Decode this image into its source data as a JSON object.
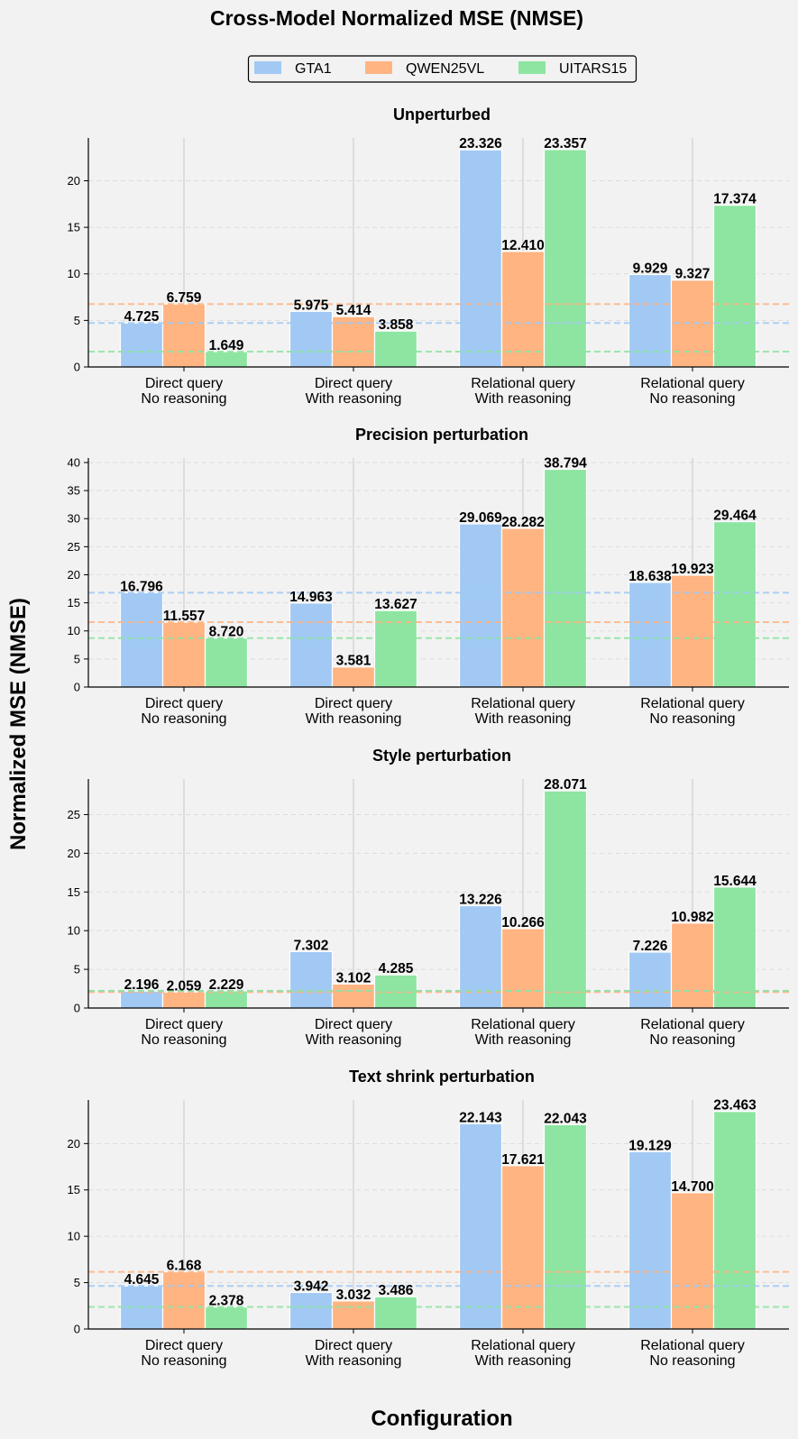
{
  "chart_data": {
    "type": "bar",
    "title": "Cross-Model Normalized MSE (NMSE)",
    "ylabel": "Normalized MSE (NMSE)",
    "xlabel": "Configuration",
    "legend": {
      "placement": "top-center",
      "entries": [
        "GTA1",
        "QWEN25VL",
        "UITARS15"
      ]
    },
    "colors": {
      "GTA1": "#a1c9f4",
      "QWEN25VL": "#ffb482",
      "UITARS15": "#8de5a1",
      "background": "#f2f2f2"
    },
    "categories": [
      [
        "Direct query",
        "No reasoning"
      ],
      [
        "Direct query",
        "With reasoning"
      ],
      [
        "Relational query",
        "With reasoning"
      ],
      [
        "Relational query",
        "No reasoning"
      ]
    ],
    "grid": "horizontal-dashed",
    "panels": [
      {
        "title": "Unperturbed",
        "ylim": [
          0,
          24.6
        ],
        "yticks": [
          0,
          5,
          10,
          15,
          20
        ],
        "series": [
          {
            "name": "GTA1",
            "values": [
              4.725,
              5.975,
              23.326,
              9.929
            ],
            "labels": [
              "4.725",
              "5.975",
              "23.326",
              "9.929"
            ]
          },
          {
            "name": "QWEN25VL",
            "values": [
              6.759,
              5.414,
              12.41,
              9.327
            ],
            "labels": [
              "6.759",
              "5.414",
              "12.410",
              "9.327"
            ]
          },
          {
            "name": "UITARS15",
            "values": [
              1.649,
              3.858,
              23.357,
              17.374
            ],
            "labels": [
              "1.649",
              "3.858",
              "23.357",
              "17.374"
            ]
          }
        ],
        "reference_lines": [
          {
            "series": "GTA1",
            "value": 4.725
          },
          {
            "series": "QWEN25VL",
            "value": 6.759
          },
          {
            "series": "UITARS15",
            "value": 1.649
          }
        ]
      },
      {
        "title": "Precision perturbation",
        "ylim": [
          0,
          40.8
        ],
        "yticks": [
          0,
          5,
          10,
          15,
          20,
          25,
          30,
          35,
          40
        ],
        "series": [
          {
            "name": "GTA1",
            "values": [
              16.796,
              14.963,
              29.069,
              18.638
            ],
            "labels": [
              "16.796",
              "14.963",
              "29.069",
              "18.638"
            ]
          },
          {
            "name": "QWEN25VL",
            "values": [
              11.557,
              3.581,
              28.282,
              19.923
            ],
            "labels": [
              "11.557",
              "3.581",
              "28.282",
              "19.923"
            ]
          },
          {
            "name": "UITARS15",
            "values": [
              8.72,
              13.627,
              38.794,
              29.464
            ],
            "labels": [
              "8.720",
              "13.627",
              "38.794",
              "29.464"
            ]
          }
        ],
        "reference_lines": [
          {
            "series": "GTA1",
            "value": 16.796
          },
          {
            "series": "QWEN25VL",
            "value": 11.557
          },
          {
            "series": "UITARS15",
            "value": 8.72
          }
        ]
      },
      {
        "title": "Style perturbation",
        "ylim": [
          0,
          29.6
        ],
        "yticks": [
          0,
          5,
          10,
          15,
          20,
          25
        ],
        "series": [
          {
            "name": "GTA1",
            "values": [
              2.196,
              7.302,
              13.226,
              7.226
            ],
            "labels": [
              "2.196",
              "7.302",
              "13.226",
              "7.226"
            ]
          },
          {
            "name": "QWEN25VL",
            "values": [
              2.059,
              3.102,
              10.266,
              10.982
            ],
            "labels": [
              "2.059",
              "3.102",
              "10.266",
              "10.982"
            ]
          },
          {
            "name": "UITARS15",
            "values": [
              2.229,
              4.285,
              28.071,
              15.644
            ],
            "labels": [
              "2.229",
              "4.285",
              "28.071",
              "15.644"
            ]
          }
        ],
        "reference_lines": [
          {
            "series": "GTA1",
            "value": 2.196
          },
          {
            "series": "QWEN25VL",
            "value": 2.059
          },
          {
            "series": "UITARS15",
            "value": 2.229
          }
        ]
      },
      {
        "title": "Text shrink perturbation",
        "ylim": [
          0,
          24.7
        ],
        "yticks": [
          0,
          5,
          10,
          15,
          20
        ],
        "series": [
          {
            "name": "GTA1",
            "values": [
              4.645,
              3.942,
              22.143,
              19.129
            ],
            "labels": [
              "4.645",
              "3.942",
              "22.143",
              "19.129"
            ]
          },
          {
            "name": "QWEN25VL",
            "values": [
              6.168,
              3.032,
              17.621,
              14.7
            ],
            "labels": [
              "6.168",
              "3.032",
              "17.621",
              "14.700"
            ]
          },
          {
            "name": "UITARS15",
            "values": [
              2.378,
              3.486,
              22.043,
              23.463
            ],
            "labels": [
              "2.378",
              "3.486",
              "22.043",
              "23.463"
            ]
          }
        ],
        "reference_lines": [
          {
            "series": "GTA1",
            "value": 4.645
          },
          {
            "series": "QWEN25VL",
            "value": 6.168
          },
          {
            "series": "UITARS15",
            "value": 2.378
          }
        ]
      }
    ]
  }
}
